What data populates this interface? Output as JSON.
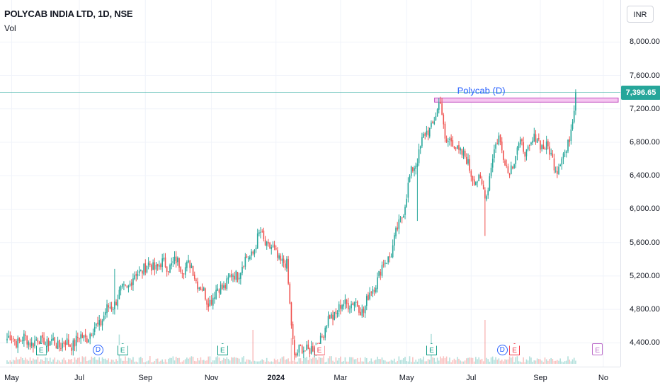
{
  "legend": {
    "symbol": "POLYCAB INDIA LTD, 1D, NSE",
    "volume_label": "Vol"
  },
  "currency": "INR",
  "last_price": "7,396.65",
  "annotation": "Polycab (D)",
  "colors": {
    "up": "#26a69a",
    "down": "#ef5350",
    "last_line": "#26a69a",
    "zone_fill": "#f5c6f0",
    "zone_border": "#c24fbf",
    "annotation": "#2962ff"
  },
  "chart_data": {
    "type": "candlestick",
    "title": "POLYCAB INDIA LTD, 1D, NSE",
    "ylim": [
      4200,
      8350
    ],
    "y_ticks": [
      {
        "v": 8000,
        "label": "8,000.00"
      },
      {
        "v": 7600,
        "label": "7,600.00"
      },
      {
        "v": 7200,
        "label": "7,200.00"
      },
      {
        "v": 6800,
        "label": "6,800.00"
      },
      {
        "v": 6400,
        "label": "6,400.00"
      },
      {
        "v": 6000,
        "label": "6,000.00"
      },
      {
        "v": 5600,
        "label": "5,600.00"
      },
      {
        "v": 5200,
        "label": "5,200.00"
      },
      {
        "v": 4800,
        "label": "4,800.00"
      },
      {
        "v": 4400,
        "label": "4,400.00"
      }
    ],
    "x_ticks": [
      {
        "label": "May",
        "i": 3
      },
      {
        "label": "Jul",
        "i": 47
      },
      {
        "label": "Sep",
        "i": 90
      },
      {
        "label": "Nov",
        "i": 133
      },
      {
        "label": "2024",
        "i": 175,
        "bold": true
      },
      {
        "label": "Mar",
        "i": 217
      },
      {
        "label": "May",
        "i": 260
      },
      {
        "label": "Jul",
        "i": 302
      },
      {
        "label": "Sep",
        "i": 347
      },
      {
        "label": "No",
        "i": 388
      }
    ],
    "bar_count": 390,
    "last_index": 370,
    "path": [
      [
        0,
        4450
      ],
      [
        40,
        4380
      ],
      [
        55,
        4520
      ],
      [
        70,
        4900
      ],
      [
        88,
        5300
      ],
      [
        110,
        5350
      ],
      [
        120,
        5300
      ],
      [
        130,
        4900
      ],
      [
        150,
        5250
      ],
      [
        160,
        5500
      ],
      [
        165,
        5700
      ],
      [
        170,
        5550
      ],
      [
        178,
        5400
      ],
      [
        182,
        5300
      ],
      [
        184,
        4850
      ],
      [
        187,
        4250
      ],
      [
        195,
        4350
      ],
      [
        200,
        4300
      ],
      [
        210,
        4700
      ],
      [
        222,
        4900
      ],
      [
        232,
        4800
      ],
      [
        240,
        5150
      ],
      [
        250,
        5500
      ],
      [
        256,
        5850
      ],
      [
        262,
        6350
      ],
      [
        270,
        6800
      ],
      [
        280,
        7150
      ],
      [
        282,
        7300
      ],
      [
        285,
        6850
      ],
      [
        295,
        6700
      ],
      [
        305,
        6350
      ],
      [
        312,
        6200
      ],
      [
        316,
        6600
      ],
      [
        320,
        6900
      ],
      [
        326,
        6400
      ],
      [
        332,
        6750
      ],
      [
        338,
        6700
      ],
      [
        345,
        6850
      ],
      [
        352,
        6700
      ],
      [
        358,
        6500
      ],
      [
        364,
        6700
      ],
      [
        367,
        7000
      ],
      [
        369,
        7200
      ],
      [
        370,
        7396.65
      ]
    ],
    "spikes": [
      [
        267,
        -600
      ],
      [
        311,
        -380
      ]
    ],
    "resistance": {
      "from": 280,
      "to": 390,
      "high": 7330,
      "low": 7280,
      "line": 7396.65
    },
    "events": [
      {
        "i": 22,
        "type": "E"
      },
      {
        "i": 59,
        "type": "D"
      },
      {
        "i": 75,
        "type": "E"
      },
      {
        "i": 140,
        "type": "E"
      },
      {
        "i": 203,
        "type": "E-red"
      },
      {
        "i": 276,
        "type": "E"
      },
      {
        "i": 322,
        "type": "D"
      },
      {
        "i": 330,
        "type": "E-red"
      },
      {
        "i": 384,
        "type": "E-purple"
      }
    ]
  }
}
